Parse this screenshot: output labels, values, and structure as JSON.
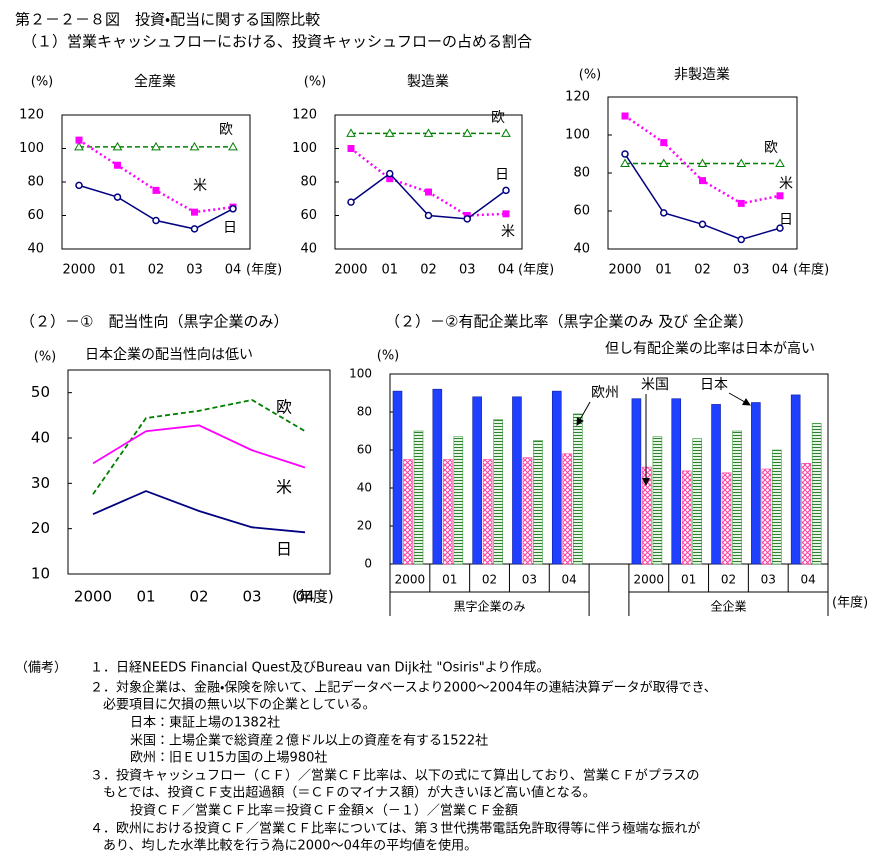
{
  "header": {
    "title": "第２－２－８図　投資・配当に関する国際比較",
    "subtitle": "（１）営業キャッシュフローにおける、投資キャッシュフローの占める割合"
  },
  "chart_data": [
    {
      "type": "line",
      "title": "全産業",
      "ylabel": "(%)",
      "xlabel": "(年度)",
      "categories": [
        "2000",
        "01",
        "02",
        "03",
        "04"
      ],
      "ylim": [
        40,
        120
      ],
      "yticks": [
        40,
        60,
        80,
        100,
        120
      ],
      "series": [
        {
          "name": "欧",
          "color": "#008000",
          "line_style": "dashed",
          "marker": "triangle",
          "values": [
            101,
            101,
            101,
            101,
            101
          ]
        },
        {
          "name": "米",
          "color": "#ff00ff",
          "line_style": "dotted",
          "marker": "square",
          "values": [
            105,
            90,
            75,
            62,
            65
          ]
        },
        {
          "name": "日",
          "color": "#000080",
          "line_style": "solid",
          "marker": "circle",
          "values": [
            78,
            71,
            57,
            52,
            64
          ]
        }
      ]
    },
    {
      "type": "line",
      "title": "製造業",
      "ylabel": "(%)",
      "xlabel": "(年度)",
      "categories": [
        "2000",
        "01",
        "02",
        "03",
        "04"
      ],
      "ylim": [
        40,
        120
      ],
      "yticks": [
        40,
        60,
        80,
        100,
        120
      ],
      "series": [
        {
          "name": "欧",
          "color": "#008000",
          "line_style": "dashed",
          "marker": "triangle",
          "values": [
            109,
            109,
            109,
            109,
            109
          ]
        },
        {
          "name": "米",
          "color": "#ff00ff",
          "line_style": "dotted",
          "marker": "square",
          "values": [
            100,
            82,
            74,
            60,
            61
          ]
        },
        {
          "name": "日",
          "color": "#000080",
          "line_style": "solid",
          "marker": "circle",
          "values": [
            68,
            85,
            60,
            58,
            75
          ]
        }
      ]
    },
    {
      "type": "line",
      "title": "非製造業",
      "ylabel": "(%)",
      "xlabel": "(年度)",
      "categories": [
        "2000",
        "01",
        "02",
        "03",
        "04"
      ],
      "ylim": [
        40,
        120
      ],
      "yticks": [
        40,
        60,
        80,
        100,
        120
      ],
      "series": [
        {
          "name": "欧",
          "color": "#008000",
          "line_style": "dashed",
          "marker": "triangle",
          "values": [
            85,
            85,
            85,
            85,
            85
          ]
        },
        {
          "name": "米",
          "color": "#ff00ff",
          "line_style": "dotted",
          "marker": "square",
          "values": [
            110,
            96,
            76,
            64,
            68
          ]
        },
        {
          "name": "日",
          "color": "#000080",
          "line_style": "solid",
          "marker": "circle",
          "values": [
            90,
            59,
            53,
            45,
            51
          ]
        }
      ]
    },
    {
      "type": "line",
      "title": "（２）－①　配当性向（黒字企業のみ）",
      "subtitle": "日本企業の配当性向は低い",
      "ylabel": "(%)",
      "xlabel": "(年度)",
      "categories": [
        "2000",
        "01",
        "02",
        "03",
        "04"
      ],
      "ylim": [
        10,
        55
      ],
      "yticks": [
        10,
        20,
        30,
        40,
        50
      ],
      "series": [
        {
          "name": "欧",
          "color": "#008000",
          "line_style": "dashed",
          "values": [
            27.6,
            44.4,
            46,
            48.4,
            41.5
          ]
        },
        {
          "name": "米",
          "color": "#ff00ff",
          "line_style": "solid",
          "values": [
            34.4,
            41.5,
            42.8,
            37.3,
            33.5
          ]
        },
        {
          "name": "日",
          "color": "#000080",
          "line_style": "solid",
          "values": [
            23.2,
            28.3,
            23.9,
            20.3,
            19.2
          ]
        }
      ]
    },
    {
      "type": "bar",
      "title": "（２）－②有配企業比率（黒字企業のみ 及び 全企業）",
      "subtitle": "但し有配企業の比率は日本が高い",
      "ylabel": "(%)",
      "xlabel": "(年度)",
      "categories": [
        "2000",
        "01",
        "02",
        "03",
        "04",
        "2000",
        "01",
        "02",
        "03",
        "04"
      ],
      "group_labels": [
        "黒字企業のみ",
        "全企業"
      ],
      "ylim": [
        0,
        100
      ],
      "yticks": [
        0,
        20,
        40,
        60,
        80,
        100
      ],
      "series": [
        {
          "name": "日本",
          "color": "#2040ff",
          "values": [
            91,
            92,
            88,
            88,
            91,
            87,
            87,
            84,
            85,
            89
          ]
        },
        {
          "name": "米国",
          "color": "#ff40a0",
          "values": [
            55,
            55,
            55,
            56,
            58,
            51,
            49,
            48,
            50,
            53
          ]
        },
        {
          "name": "欧州",
          "color": "#40a040",
          "values": [
            70,
            67,
            76,
            65,
            79,
            67,
            66,
            70,
            60,
            74
          ]
        }
      ]
    }
  ],
  "notes": {
    "label": "（備考）",
    "lines": [
      "１．日経NEEDS Financial Quest及びBureau van Dijk社 \"Osiris\"より作成。",
      "２．対象企業は、金融・保険を除いて、上記データベースより2000～2004年の連結決算データが取得でき、",
      "必要項目に欠損の無い以下の企業としている。",
      "日本：東証上場の1382社",
      "米国：上場企業で総資産２億ドル以上の資産を有する1522社",
      "欧州：旧ＥＵ15カ国の上場980社",
      "３．投資キャッシュフロー（ＣＦ）／営業ＣＦ比率は、以下の式にて算出しており、営業ＣＦがプラスの",
      "もとでは、投資ＣＦ支出超過額（＝ＣＦのマイナス額）が大きいほど高い値となる。",
      "投資ＣＦ／営業ＣＦ比率＝投資ＣＦ金額×（－１）／営業ＣＦ金額",
      "４．欧州における投資ＣＦ／営業ＣＦ比率については、第３世代携帯電話免許取得等に伴う極端な振れが",
      "あり、均した水準比較を行う為に2000～04年の平均値を使用。"
    ]
  }
}
